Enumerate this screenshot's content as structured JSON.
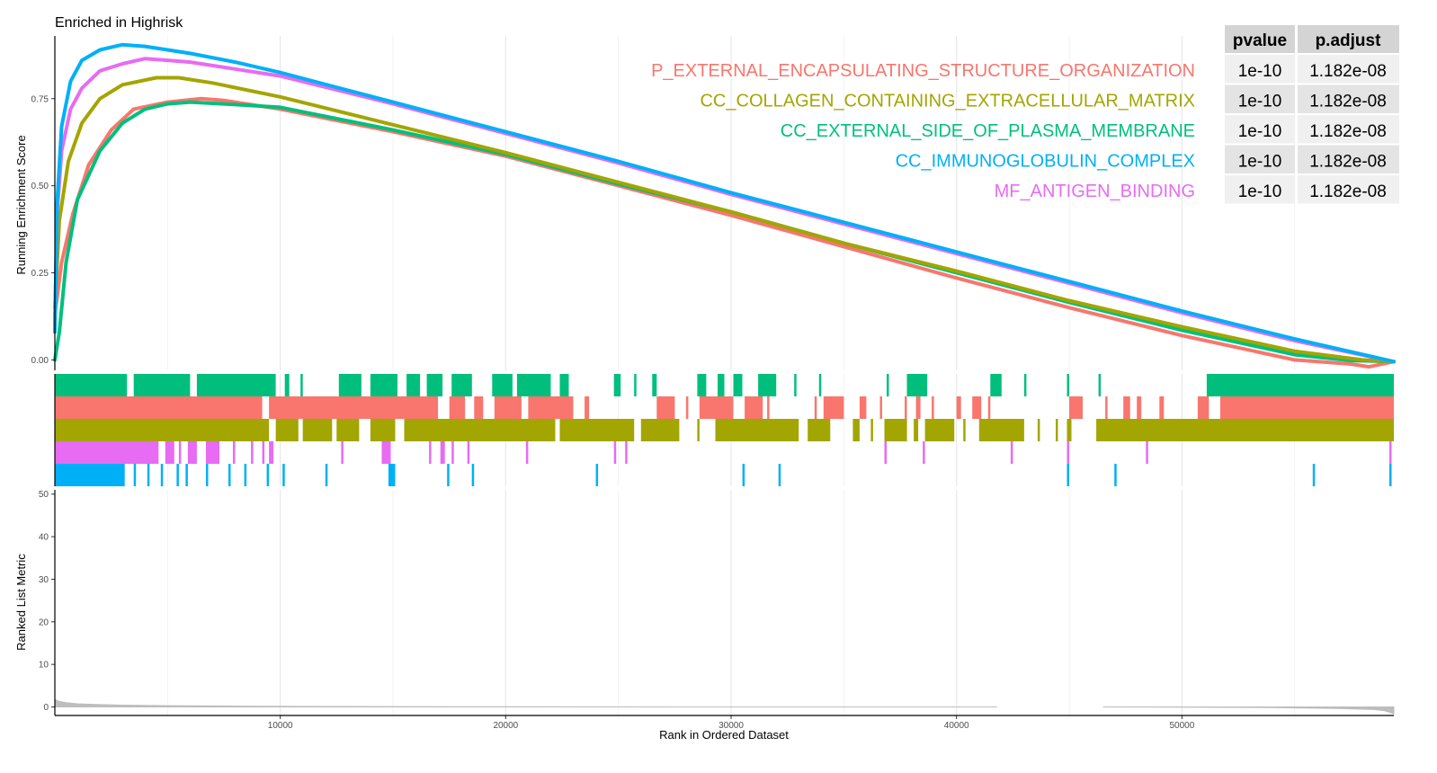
{
  "chart_data": {
    "type": "line",
    "title": "Enriched in Highrisk",
    "panels": {
      "enrichment": {
        "ylabel": "Running Enrichment Score",
        "ylim": [
          -0.03,
          0.93
        ],
        "yticks": [
          0.0,
          0.25,
          0.5,
          0.75
        ],
        "ytick_labels": [
          "0.00",
          "0.25",
          "0.50",
          "0.75"
        ]
      },
      "rank_metric": {
        "ylabel": "Ranked List Metric",
        "ylim": [
          -2,
          51
        ],
        "yticks": [
          0,
          10,
          20,
          30,
          40,
          50
        ],
        "ytick_labels": [
          "0",
          "10",
          "20",
          "30",
          "40",
          "50"
        ]
      }
    },
    "xlabel": "Rank in Ordered Dataset",
    "xlim": [
      0,
      59400
    ],
    "xticks": [
      10000,
      20000,
      30000,
      40000,
      50000
    ],
    "xtick_labels": [
      "10000",
      "20000",
      "30000",
      "40000",
      "50000"
    ],
    "grid": true,
    "series": [
      {
        "name": "P_EXTERNAL_ENCAPSULATING_STRUCTURE_ORGANIZATION",
        "color": "#F8766D",
        "pvalue": "1e-10",
        "p_adjust": "1.182e-08",
        "x": [
          0,
          300,
          800,
          1500,
          2500,
          3500,
          5000,
          6500,
          7500,
          10000,
          15000,
          20000,
          25000,
          30000,
          35000,
          40000,
          45000,
          50000,
          55000,
          57500,
          58300,
          59400
        ],
        "y": [
          0.13,
          0.28,
          0.42,
          0.56,
          0.66,
          0.72,
          0.74,
          0.75,
          0.745,
          0.72,
          0.655,
          0.585,
          0.5,
          0.415,
          0.325,
          0.235,
          0.15,
          0.07,
          0.0,
          -0.012,
          -0.02,
          -0.005
        ],
        "hits": [
          [
            0,
            9200
          ],
          [
            9500,
            17000
          ],
          [
            17500,
            18200
          ],
          [
            18600,
            19000
          ],
          [
            19500,
            20700
          ],
          [
            21000,
            23000
          ],
          [
            23500,
            23700
          ],
          [
            26700,
            27500
          ],
          [
            28000,
            28100
          ],
          [
            28600,
            30100
          ],
          [
            30600,
            31400
          ],
          [
            31600,
            31700
          ],
          [
            33700,
            33800
          ],
          [
            34100,
            35000
          ],
          [
            35700,
            36000
          ],
          [
            36600,
            36700
          ],
          [
            37700,
            37800
          ],
          [
            38200,
            38400
          ],
          [
            38900,
            39000
          ],
          [
            40000,
            40200
          ],
          [
            40700,
            41100
          ],
          [
            41400,
            41500
          ],
          [
            45000,
            45600
          ],
          [
            46600,
            46700
          ],
          [
            47400,
            47700
          ],
          [
            48000,
            48200
          ],
          [
            49000,
            49200
          ],
          [
            50700,
            51200
          ],
          [
            51700,
            59400
          ]
        ]
      },
      {
        "name": "CC_COLLAGEN_CONTAINING_EXTRACELLULAR_MATRIX",
        "color": "#A3A500",
        "pvalue": "1e-10",
        "p_adjust": "1.182e-08",
        "x": [
          0,
          200,
          600,
          1200,
          2000,
          3000,
          4500,
          5500,
          7000,
          10000,
          15000,
          20000,
          25000,
          30000,
          35000,
          40000,
          45000,
          50000,
          55000,
          58000,
          59400
        ],
        "y": [
          0.15,
          0.4,
          0.57,
          0.68,
          0.75,
          0.79,
          0.81,
          0.81,
          0.795,
          0.755,
          0.675,
          0.595,
          0.51,
          0.425,
          0.335,
          0.255,
          0.17,
          0.095,
          0.025,
          0.0,
          -0.005
        ],
        "hits": [
          [
            0,
            9500
          ],
          [
            9800,
            10800
          ],
          [
            11000,
            12300
          ],
          [
            12500,
            13500
          ],
          [
            14000,
            15100
          ],
          [
            15500,
            22200
          ],
          [
            22400,
            25700
          ],
          [
            26000,
            27700
          ],
          [
            28500,
            28600
          ],
          [
            29300,
            33000
          ],
          [
            33400,
            34400
          ],
          [
            35400,
            35700
          ],
          [
            36200,
            36300
          ],
          [
            36800,
            37800
          ],
          [
            38100,
            38300
          ],
          [
            38600,
            39900
          ],
          [
            40300,
            40400
          ],
          [
            41000,
            43000
          ],
          [
            43600,
            43700
          ],
          [
            44400,
            44500
          ],
          [
            44900,
            45100
          ],
          [
            46200,
            59400
          ]
        ]
      },
      {
        "name": "CC_EXTERNAL_SIDE_OF_PLASMA_MEMBRANE",
        "color": "#00BF7D",
        "pvalue": "1e-10",
        "p_adjust": "1.182e-08",
        "x": [
          0,
          200,
          500,
          1000,
          2000,
          3000,
          4000,
          5000,
          6000,
          7500,
          10000,
          15000,
          20000,
          25000,
          30000,
          35000,
          40000,
          45000,
          50000,
          55000,
          57500,
          59400
        ],
        "y": [
          0.0,
          0.08,
          0.28,
          0.46,
          0.6,
          0.68,
          0.72,
          0.735,
          0.74,
          0.735,
          0.725,
          0.66,
          0.59,
          0.505,
          0.425,
          0.335,
          0.25,
          0.165,
          0.085,
          0.015,
          -0.002,
          -0.005
        ],
        "hits": [
          [
            0,
            3200
          ],
          [
            3500,
            6000
          ],
          [
            6300,
            9800
          ],
          [
            10200,
            10400
          ],
          [
            10900,
            11000
          ],
          [
            12600,
            13600
          ],
          [
            14000,
            15200
          ],
          [
            15600,
            16200
          ],
          [
            16500,
            17200
          ],
          [
            17600,
            18500
          ],
          [
            19400,
            20300
          ],
          [
            20500,
            22000
          ],
          [
            22400,
            22800
          ],
          [
            24800,
            25100
          ],
          [
            25700,
            25800
          ],
          [
            26500,
            26700
          ],
          [
            28500,
            28900
          ],
          [
            29400,
            29700
          ],
          [
            30100,
            30500
          ],
          [
            31200,
            32000
          ],
          [
            32800,
            32900
          ],
          [
            33900,
            34000
          ],
          [
            36900,
            37000
          ],
          [
            37800,
            38700
          ],
          [
            41500,
            42000
          ],
          [
            43000,
            43100
          ],
          [
            44900,
            45000
          ],
          [
            46300,
            46400
          ],
          [
            51100,
            59400
          ]
        ]
      },
      {
        "name": "CC_IMMUNOGLOBULIN_COMPLEX",
        "color": "#00B0F6",
        "pvalue": "1e-10",
        "p_adjust": "1.182e-08",
        "x": [
          0,
          100,
          300,
          700,
          1200,
          2000,
          3000,
          4000,
          6000,
          8000,
          10000,
          15000,
          20000,
          25000,
          30000,
          35000,
          40000,
          45000,
          50000,
          55000,
          59400
        ],
        "y": [
          0.08,
          0.45,
          0.67,
          0.8,
          0.86,
          0.89,
          0.905,
          0.9,
          0.88,
          0.855,
          0.825,
          0.74,
          0.655,
          0.57,
          0.48,
          0.395,
          0.31,
          0.225,
          0.14,
          0.06,
          -0.005
        ],
        "hits": [
          [
            0,
            3100
          ],
          [
            3500,
            3600
          ],
          [
            4100,
            4200
          ],
          [
            4700,
            4800
          ],
          [
            5400,
            5500
          ],
          [
            5800,
            5900
          ],
          [
            6700,
            6800
          ],
          [
            7700,
            7800
          ],
          [
            8400,
            8500
          ],
          [
            9400,
            9500
          ],
          [
            10100,
            10200
          ],
          [
            12000,
            12100
          ],
          [
            14800,
            15100
          ],
          [
            17400,
            17500
          ],
          [
            18500,
            18600
          ],
          [
            24000,
            24100
          ],
          [
            30500,
            30600
          ],
          [
            32100,
            32200
          ],
          [
            44900,
            45000
          ],
          [
            47000,
            47100
          ],
          [
            55800,
            55900
          ],
          [
            59200,
            59300
          ]
        ]
      },
      {
        "name": "MF_ANTIGEN_BINDING",
        "color": "#E76BF3",
        "pvalue": "1e-10",
        "p_adjust": "1.182e-08",
        "x": [
          0,
          100,
          300,
          700,
          1200,
          2000,
          3000,
          4000,
          5000,
          6000,
          8000,
          10000,
          15000,
          20000,
          25000,
          30000,
          35000,
          40000,
          45000,
          50000,
          55000,
          59400
        ],
        "y": [
          0.1,
          0.42,
          0.6,
          0.72,
          0.78,
          0.83,
          0.85,
          0.865,
          0.86,
          0.855,
          0.835,
          0.815,
          0.735,
          0.65,
          0.565,
          0.475,
          0.39,
          0.305,
          0.22,
          0.135,
          0.055,
          -0.005
        ],
        "hits": [
          [
            0,
            4600
          ],
          [
            4900,
            5300
          ],
          [
            5500,
            5600
          ],
          [
            5900,
            6300
          ],
          [
            6700,
            7300
          ],
          [
            7900,
            8000
          ],
          [
            8700,
            8800
          ],
          [
            9200,
            9300
          ],
          [
            9500,
            9700
          ],
          [
            12700,
            12800
          ],
          [
            14500,
            14900
          ],
          [
            16600,
            16700
          ],
          [
            17100,
            17300
          ],
          [
            17600,
            17700
          ],
          [
            18300,
            18400
          ],
          [
            20900,
            21000
          ],
          [
            24800,
            24900
          ],
          [
            25300,
            25400
          ],
          [
            36800,
            36900
          ],
          [
            38500,
            38600
          ],
          [
            42400,
            42500
          ],
          [
            44900,
            45000
          ],
          [
            48400,
            48500
          ],
          [
            59200,
            59300
          ]
        ]
      }
    ],
    "rank_metric": {
      "x": [
        0,
        200,
        500,
        1000,
        2000,
        3000,
        5000,
        8000,
        12000,
        20000,
        30000,
        41800
      ],
      "y": [
        1.8,
        1.3,
        1.0,
        0.75,
        0.55,
        0.42,
        0.3,
        0.2,
        0.12,
        0.05,
        0.01,
        0.0
      ],
      "x_neg": [
        46500,
        50000,
        54000,
        57000,
        58500,
        59000,
        59400
      ],
      "y_neg": [
        0.0,
        -0.05,
        -0.15,
        -0.35,
        -0.6,
        -0.9,
        -1.6
      ]
    }
  },
  "table": {
    "headers": [
      "pvalue",
      "p.adjust"
    ]
  }
}
